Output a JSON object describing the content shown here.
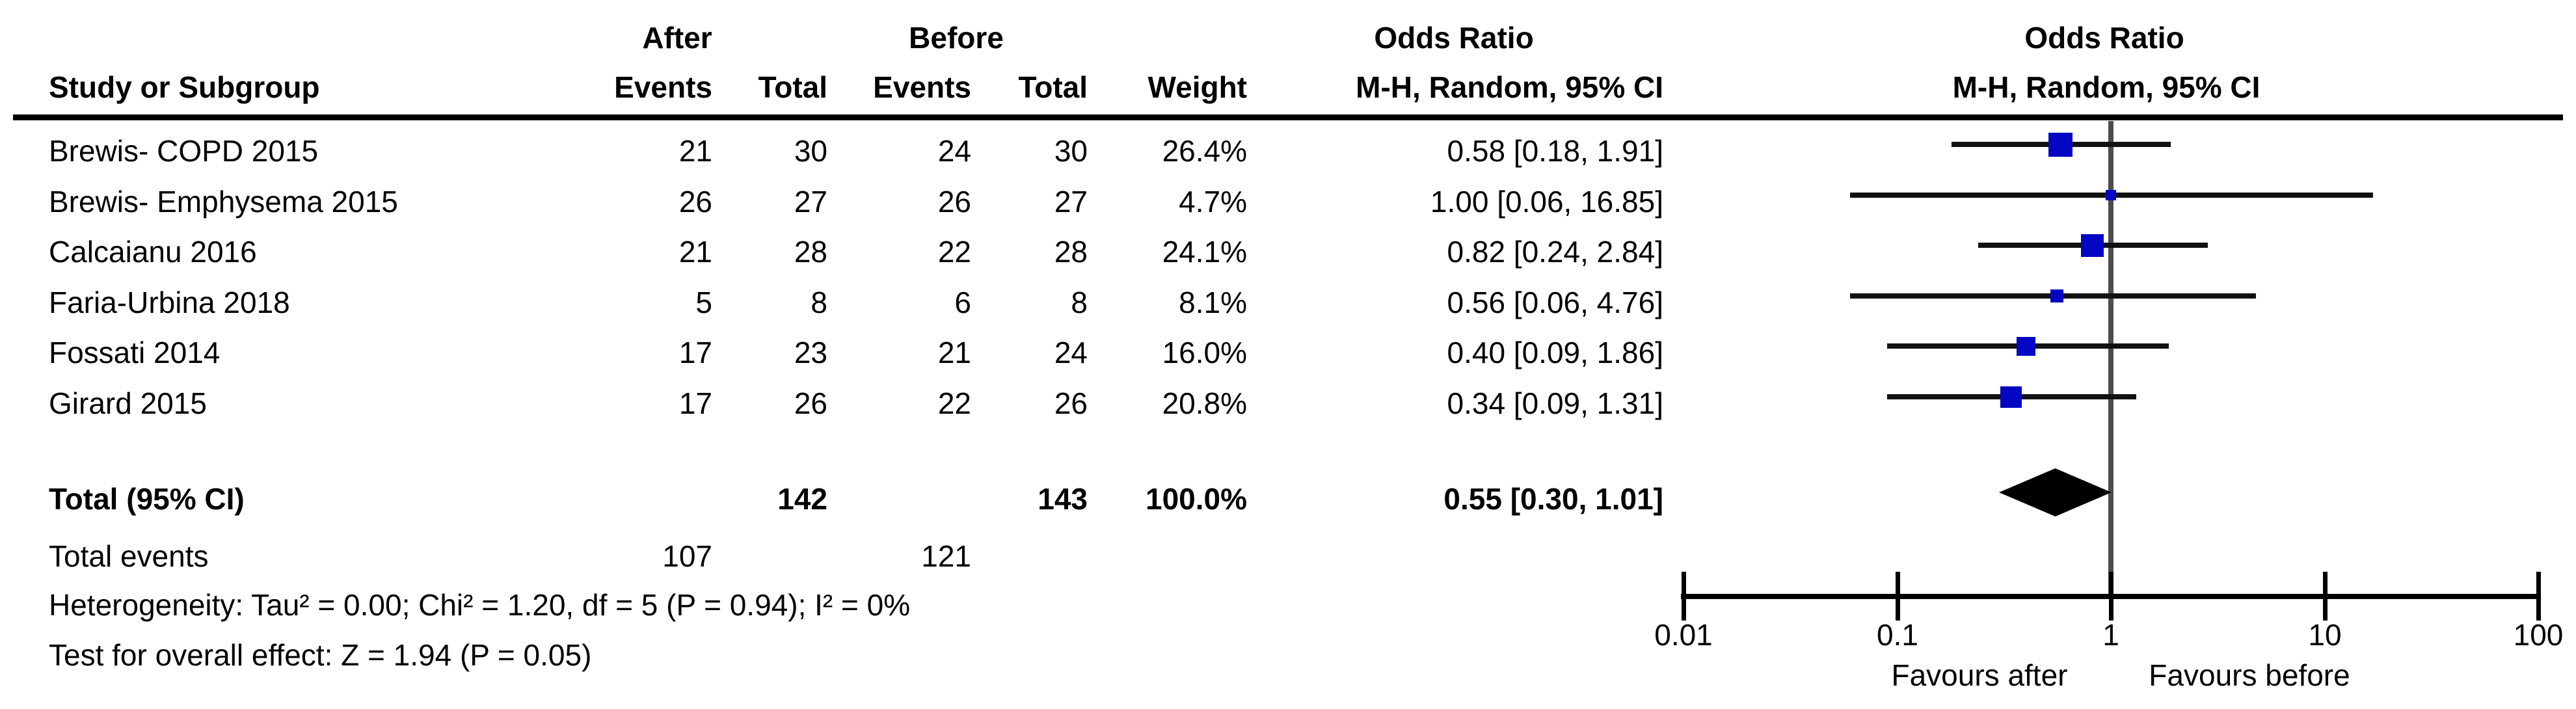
{
  "table": {
    "group_headers": {
      "after": "After",
      "before": "Before",
      "odds_ratio_left": "Odds Ratio",
      "odds_ratio_right": "Odds Ratio"
    },
    "column_headers": {
      "study": "Study or Subgroup",
      "after_events": "Events",
      "after_total": "Total",
      "before_events": "Events",
      "before_total": "Total",
      "weight": "Weight",
      "mh_ci": "M-H, Random, 95% CI",
      "mh_ci_plot": "M-H, Random, 95% CI"
    },
    "rows": [
      {
        "study": "Brewis- COPD 2015",
        "after_events": "21",
        "after_total": "30",
        "before_events": "24",
        "before_total": "30",
        "weight": "26.4%",
        "or_ci": "0.58 [0.18, 1.91]"
      },
      {
        "study": "Brewis- Emphysema 2015",
        "after_events": "26",
        "after_total": "27",
        "before_events": "26",
        "before_total": "27",
        "weight": "4.7%",
        "or_ci": "1.00 [0.06, 16.85]"
      },
      {
        "study": "Calcaianu 2016",
        "after_events": "21",
        "after_total": "28",
        "before_events": "22",
        "before_total": "28",
        "weight": "24.1%",
        "or_ci": "0.82 [0.24, 2.84]"
      },
      {
        "study": "Faria-Urbina 2018",
        "after_events": "5",
        "after_total": "8",
        "before_events": "6",
        "before_total": "8",
        "weight": "8.1%",
        "or_ci": "0.56 [0.06, 4.76]"
      },
      {
        "study": "Fossati 2014",
        "after_events": "17",
        "after_total": "23",
        "before_events": "21",
        "before_total": "24",
        "weight": "16.0%",
        "or_ci": "0.40 [0.09, 1.86]"
      },
      {
        "study": "Girard 2015",
        "after_events": "17",
        "after_total": "26",
        "before_events": "22",
        "before_total": "26",
        "weight": "20.8%",
        "or_ci": "0.34 [0.09, 1.31]"
      }
    ],
    "total_row": {
      "label": "Total (95% CI)",
      "after_total": "142",
      "before_total": "143",
      "weight": "100.0%",
      "or_ci": "0.55 [0.30, 1.01]"
    },
    "total_events": {
      "label": "Total events",
      "after": "107",
      "before": "121"
    },
    "heterogeneity": "Heterogeneity: Tau² = 0.00; Chi² = 1.20, df = 5 (P = 0.94); I² = 0%",
    "overall_effect": "Test for overall effect: Z = 1.94 (P = 0.05)"
  },
  "chart_data": {
    "type": "forest",
    "scale": "log10",
    "effect_measure": "Odds Ratio",
    "method": "M-H, Random, 95% CI",
    "axis": {
      "min": 0.01,
      "max": 100,
      "ref_line": 1,
      "ticks": [
        0.01,
        0.1,
        1,
        10,
        100
      ],
      "tick_labels": [
        "0.01",
        "0.1",
        "1",
        "10",
        "100"
      ]
    },
    "favours": {
      "left": "Favours after",
      "right": "Favours before"
    },
    "studies": [
      {
        "name": "Brewis- COPD 2015",
        "or": 0.58,
        "ci_low": 0.18,
        "ci_high": 1.91,
        "weight_pct": 26.4
      },
      {
        "name": "Brewis- Emphysema 2015",
        "or": 1.0,
        "ci_low": 0.06,
        "ci_high": 16.85,
        "weight_pct": 4.7
      },
      {
        "name": "Calcaianu 2016",
        "or": 0.82,
        "ci_low": 0.24,
        "ci_high": 2.84,
        "weight_pct": 24.1
      },
      {
        "name": "Faria-Urbina 2018",
        "or": 0.56,
        "ci_low": 0.06,
        "ci_high": 4.76,
        "weight_pct": 8.1
      },
      {
        "name": "Fossati 2014",
        "or": 0.4,
        "ci_low": 0.09,
        "ci_high": 1.86,
        "weight_pct": 16.0
      },
      {
        "name": "Girard 2015",
        "or": 0.34,
        "ci_low": 0.09,
        "ci_high": 1.31,
        "weight_pct": 20.8
      }
    ],
    "total": {
      "or": 0.55,
      "ci_low": 0.3,
      "ci_high": 1.01
    }
  },
  "colors": {
    "square_blue": "#0505c4",
    "ci_line": "#111111",
    "ref_line": "#4d4d4d",
    "diamond": "#000000",
    "text": "#000000"
  }
}
